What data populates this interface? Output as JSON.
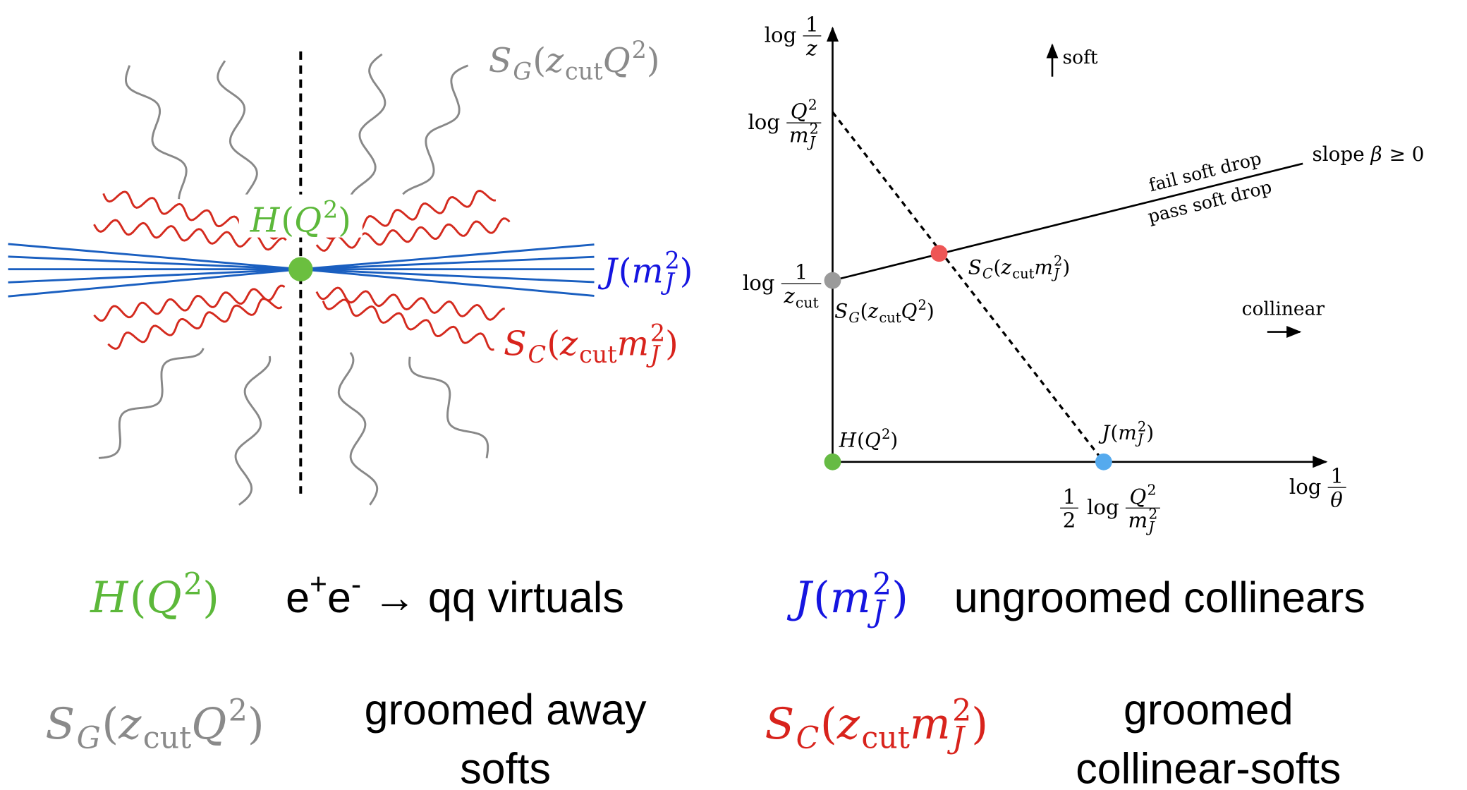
{
  "left_diagram": {
    "soft_global": [
      {
        "t": "S"
      },
      {
        "sub": "G"
      },
      {
        "r": "("
      },
      {
        "t": "z"
      },
      {
        "rsub": "cut"
      },
      {
        "t": "Q"
      },
      {
        "sup": "2"
      },
      {
        "r": ")"
      }
    ],
    "hard": [
      {
        "t": "H"
      },
      {
        "r": "("
      },
      {
        "t": "Q"
      },
      {
        "sup": "2"
      },
      {
        "r": ")"
      }
    ],
    "jet": [
      {
        "t": "J"
      },
      {
        "r": "("
      },
      {
        "t": "m"
      },
      {
        "sup": "2"
      },
      {
        "sub": "J"
      },
      {
        "r": ")"
      }
    ],
    "collinear_soft": [
      {
        "t": "S"
      },
      {
        "sub": "C"
      },
      {
        "r": "("
      },
      {
        "t": "z"
      },
      {
        "rsub": "cut"
      },
      {
        "t": "m"
      },
      {
        "sup": "2"
      },
      {
        "sub": "J"
      },
      {
        "r": ")"
      }
    ]
  },
  "plot": {
    "y_axis_label": [
      {
        "r": "log "
      },
      {
        "num": [
          {
            "r": "1"
          }
        ],
        "den": [
          {
            "t": "z"
          }
        ]
      }
    ],
    "y_tick_top": [
      {
        "r": "log "
      },
      {
        "num": [
          {
            "t": "Q"
          },
          {
            "sup": "2"
          }
        ],
        "den": [
          {
            "t": "m"
          },
          {
            "sup": "2"
          },
          {
            "sub": "J"
          }
        ]
      }
    ],
    "y_tick_mid": [
      {
        "r": "log "
      },
      {
        "num": [
          {
            "r": "1"
          }
        ],
        "den": [
          {
            "t": "z"
          },
          {
            "rsub": "cut"
          }
        ]
      }
    ],
    "x_tick": [
      {
        "num": [
          {
            "r": "1"
          }
        ],
        "den": [
          {
            "r": "2"
          }
        ]
      },
      {
        "r": " log "
      },
      {
        "num": [
          {
            "t": "Q"
          },
          {
            "sup": "2"
          }
        ],
        "den": [
          {
            "t": "m"
          },
          {
            "sup": "2"
          },
          {
            "sub": "J"
          }
        ]
      }
    ],
    "x_axis_label": [
      {
        "r": "log "
      },
      {
        "num": [
          {
            "r": "1"
          }
        ],
        "den": [
          {
            "t": "θ"
          }
        ]
      }
    ],
    "soft": "soft",
    "collinear": "collinear",
    "fail": "fail soft drop",
    "pass": "pass soft drop",
    "slope": [
      {
        "r": "slope "
      },
      {
        "t": "β"
      },
      {
        "r": " ≥ 0"
      }
    ],
    "point_sg": [
      {
        "t": "S"
      },
      {
        "sub": "G"
      },
      {
        "r": "("
      },
      {
        "t": "z"
      },
      {
        "rsub": "cut"
      },
      {
        "t": "Q"
      },
      {
        "sup": "2"
      },
      {
        "r": ")"
      }
    ],
    "point_sc": [
      {
        "t": "S"
      },
      {
        "sub": "C"
      },
      {
        "r": "("
      },
      {
        "t": "z"
      },
      {
        "rsub": "cut"
      },
      {
        "t": "m"
      },
      {
        "sup": "2"
      },
      {
        "sub": "J"
      },
      {
        "r": ")"
      }
    ],
    "point_h": [
      {
        "t": "H"
      },
      {
        "r": "("
      },
      {
        "t": "Q"
      },
      {
        "sup": "2"
      },
      {
        "r": ")"
      }
    ],
    "point_j": [
      {
        "t": "J"
      },
      {
        "r": "("
      },
      {
        "t": "m"
      },
      {
        "sup": "2"
      },
      {
        "sub": "J"
      },
      {
        "r": ")"
      }
    ]
  },
  "legend": {
    "hard_symbol": [
      {
        "t": "H"
      },
      {
        "r": "("
      },
      {
        "t": "Q"
      },
      {
        "sup": "2"
      },
      {
        "r": ")"
      }
    ],
    "hard_text": [
      {
        "r": "e"
      },
      {
        "sup": "+"
      },
      {
        "r": "e"
      },
      {
        "sup": "-"
      },
      {
        "r": " → qq virtuals"
      }
    ],
    "jet_symbol": [
      {
        "t": "J"
      },
      {
        "r": "("
      },
      {
        "t": "m"
      },
      {
        "sup": "2"
      },
      {
        "sub": "J"
      },
      {
        "r": ")"
      }
    ],
    "jet_text": "ungroomed collinears",
    "soft_symbol": [
      {
        "t": "S"
      },
      {
        "sub": "G"
      },
      {
        "r": "("
      },
      {
        "t": "z"
      },
      {
        "rsub": "cut"
      },
      {
        "t": "Q"
      },
      {
        "sup": "2"
      },
      {
        "r": ")"
      }
    ],
    "soft_text": [
      "groomed away",
      "softs"
    ],
    "cs_symbol": [
      {
        "t": "S"
      },
      {
        "sub": "C"
      },
      {
        "r": "("
      },
      {
        "t": "z"
      },
      {
        "rsub": "cut"
      },
      {
        "t": "m"
      },
      {
        "sup": "2"
      },
      {
        "sub": "J"
      },
      {
        "r": ")"
      }
    ],
    "cs_text": [
      "groomed",
      "collinear-softs"
    ]
  }
}
